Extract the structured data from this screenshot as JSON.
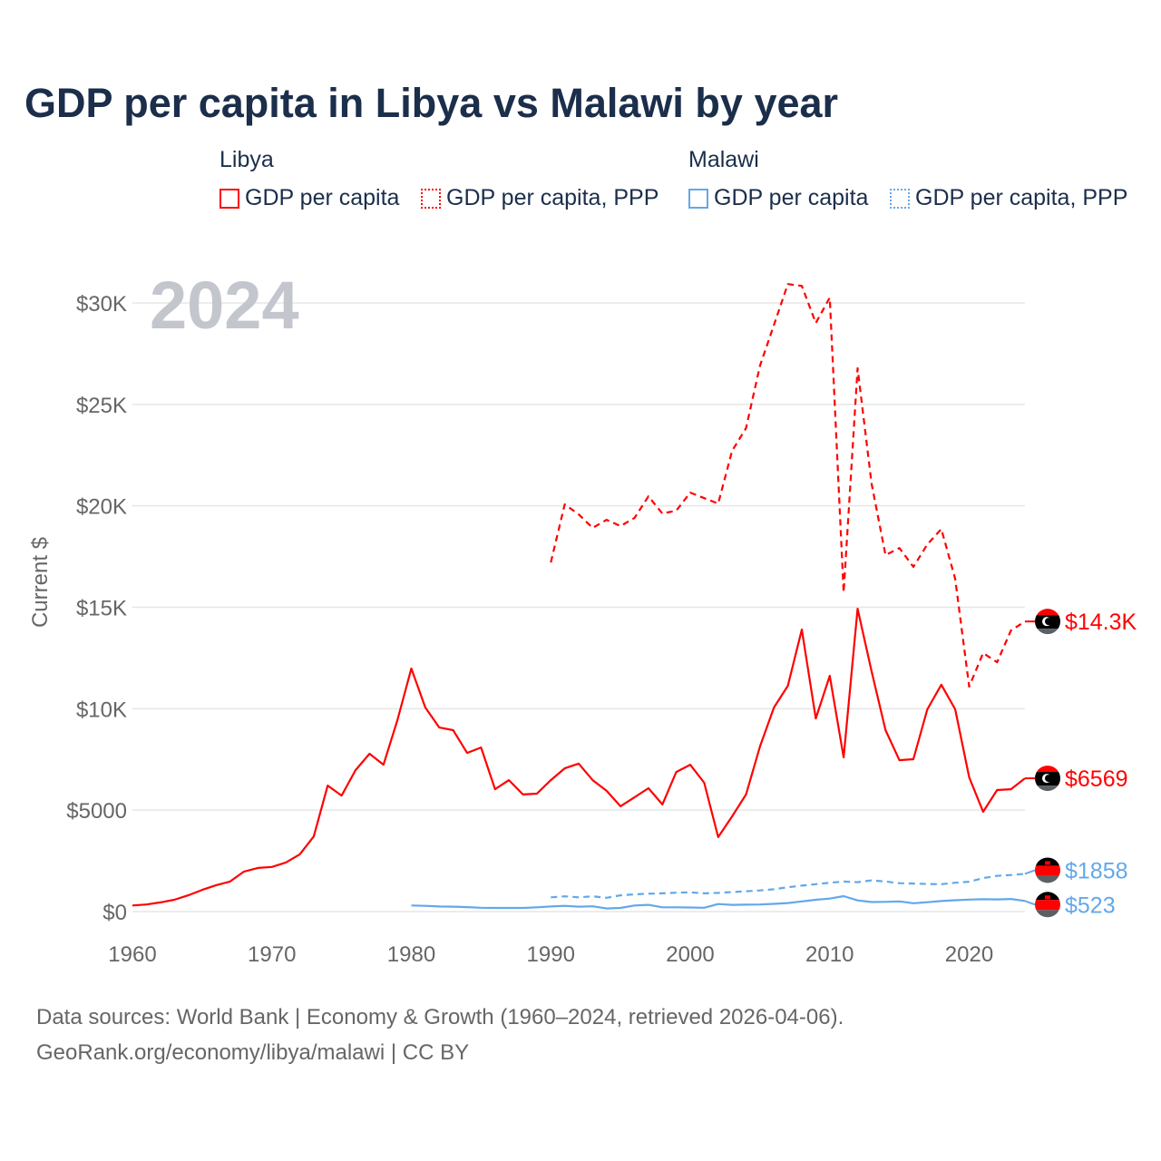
{
  "chart_data": {
    "type": "line",
    "title": "GDP per capita in Libya vs Malawi by year",
    "ylabel": "Current $",
    "xlabel": "",
    "year_watermark": "2024",
    "xlim": [
      1960,
      2024
    ],
    "ylim": [
      0,
      32000
    ],
    "x_ticks": [
      1960,
      1970,
      1980,
      1990,
      2000,
      2010,
      2020
    ],
    "x_tick_labels": [
      "1960",
      "1970",
      "1980",
      "1990",
      "2000",
      "2010",
      "2020"
    ],
    "y_ticks": [
      0,
      5000,
      10000,
      15000,
      20000,
      25000,
      30000
    ],
    "y_tick_labels": [
      "$0",
      "$5000",
      "$10K",
      "$15K",
      "$20K",
      "$25K",
      "$30K"
    ],
    "grid": true,
    "legend": {
      "placement": "top",
      "groups": [
        {
          "label": "Libya",
          "items": [
            "GDP per capita",
            "GDP per capita, PPP"
          ]
        },
        {
          "label": "Malawi",
          "items": [
            "GDP per capita",
            "GDP per capita, PPP"
          ]
        }
      ]
    },
    "series": [
      {
        "name": "Libya GDP per capita",
        "country": "Libya",
        "color": "#ff0000",
        "dash": false,
        "end_label": "$6569",
        "start_year": 1960,
        "values": [
          300,
          350,
          450,
          580,
          800,
          1070,
          1300,
          1480,
          1970,
          2150,
          2200,
          2420,
          2820,
          3700,
          6210,
          5720,
          6970,
          7780,
          7240,
          9430,
          11980,
          10060,
          9070,
          8940,
          7820,
          8090,
          6030,
          6480,
          5770,
          5810,
          6480,
          7060,
          7290,
          6480,
          5950,
          5190,
          5630,
          6080,
          5280,
          6880,
          7240,
          6350,
          3670,
          4690,
          5770,
          8140,
          10060,
          11130,
          13900,
          9520,
          11620,
          7600,
          14930,
          11850,
          8940,
          7460,
          7510,
          9970,
          11180,
          9970,
          6620,
          4920,
          5990,
          6030,
          6569
        ]
      },
      {
        "name": "Libya GDP per capita, PPP",
        "country": "Libya",
        "color": "#ff0000",
        "dash": true,
        "end_label": "$14.3K",
        "start_year": 1990,
        "values": [
          17210,
          20070,
          19580,
          18910,
          19310,
          19000,
          19400,
          20470,
          19620,
          19760,
          20650,
          20380,
          20110,
          22710,
          23830,
          26910,
          28920,
          30930,
          30840,
          29010,
          30260,
          15730,
          26780,
          21100,
          17570,
          17920,
          16990,
          18100,
          18860,
          16400,
          11090,
          12740,
          12290,
          13860,
          14300
        ]
      },
      {
        "name": "Malawi GDP per capita",
        "country": "Malawi",
        "color": "#62a8ea",
        "dash": false,
        "end_label": "$523",
        "start_year": 1980,
        "values": [
          300,
          280,
          250,
          240,
          220,
          190,
          180,
          180,
          180,
          210,
          250,
          280,
          240,
          260,
          150,
          180,
          300,
          330,
          210,
          210,
          200,
          190,
          370,
          330,
          340,
          350,
          380,
          420,
          500,
          580,
          640,
          760,
          550,
          470,
          480,
          500,
          410,
          460,
          520,
          560,
          590,
          610,
          600,
          620,
          523
        ]
      },
      {
        "name": "Malawi GDP per capita, PPP",
        "country": "Malawi",
        "color": "#62a8ea",
        "dash": true,
        "end_label": "$1858",
        "start_year": 1990,
        "values": [
          700,
          750,
          700,
          750,
          680,
          800,
          850,
          880,
          900,
          930,
          950,
          900,
          920,
          960,
          1000,
          1040,
          1100,
          1200,
          1280,
          1350,
          1420,
          1480,
          1450,
          1540,
          1480,
          1400,
          1380,
          1360,
          1350,
          1420,
          1470,
          1650,
          1760,
          1800,
          1858
        ]
      }
    ]
  },
  "footer": {
    "line1": "Data sources: World Bank | Economy & Growth (1960–2024, retrieved 2026-04-06).",
    "line2": "GeoRank.org/economy/libya/malawi | CC BY"
  },
  "colors": {
    "libya": "#ff0000",
    "malawi": "#62a8ea",
    "title": "#1b2e4b",
    "grid": "#e6e6e6",
    "axis_text": "#666666",
    "watermark": "#c3c6cd"
  }
}
